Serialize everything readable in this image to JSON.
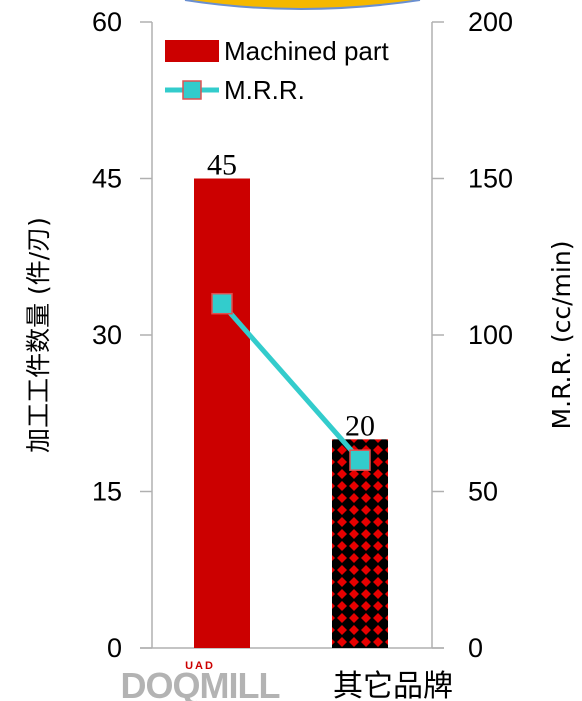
{
  "chart_data": {
    "type": "bar",
    "categories": [
      "DOQMILL",
      "其它品牌"
    ],
    "logo": {
      "main": "DOQMILL",
      "superscript": "UAD"
    },
    "series": [
      {
        "name": "Machined part",
        "type": "bar",
        "axis": "left",
        "values": [
          45,
          20
        ],
        "data_labels": [
          "45",
          "20"
        ]
      },
      {
        "name": "M.R.R.",
        "type": "line",
        "axis": "right",
        "values": [
          110,
          60
        ]
      }
    ],
    "ylabel": "加工工件数量 (件/刃)",
    "y2label": "M.R.R. (cc/min)",
    "ylim": [
      0,
      60
    ],
    "y2lim": [
      0,
      200
    ],
    "yticks": [
      "0",
      "15",
      "30",
      "45",
      "60"
    ],
    "y2ticks": [
      "0",
      "50",
      "100",
      "150",
      "200"
    ],
    "legend_position": "top-left",
    "colors": {
      "bar1": "#cc0000",
      "bar2_pattern": "#e80000",
      "bar2_bg": "#000000",
      "line": "#33cccc",
      "marker": "#33cccc",
      "marker_edge": "#e05050"
    }
  }
}
